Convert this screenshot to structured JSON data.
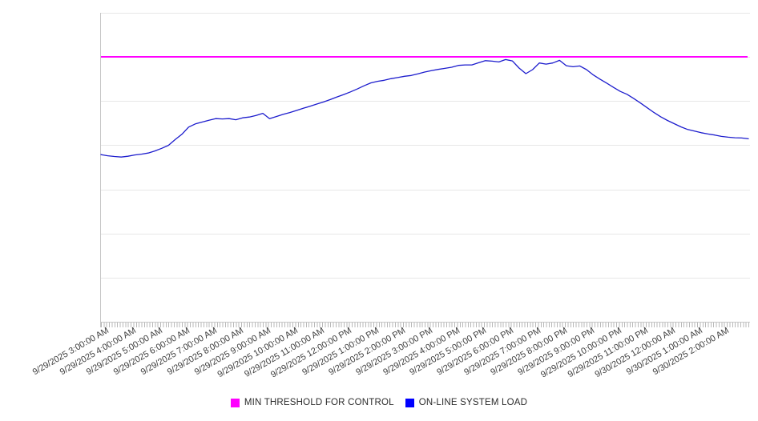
{
  "chart_data": {
    "type": "line",
    "title": "",
    "xlabel": "",
    "ylabel": "",
    "y_axis_labels_visible": false,
    "y_units": "relative load (threshold = 100)",
    "ylim": [
      0,
      116
    ],
    "grid": "horizontal",
    "legend_position": "bottom-center",
    "x_range": [
      "9/29/2025 3:00:00 AM",
      "9/30/2025 3:00:00 AM"
    ],
    "sample_interval_minutes": 15,
    "x_tick_labels": [
      "9/29/2025 3:00:00 AM",
      "9/29/2025 4:00:00 AM",
      "9/29/2025 5:00:00 AM",
      "9/29/2025 6:00:00 AM",
      "9/29/2025 7:00:00 AM",
      "9/29/2025 8:00:00 AM",
      "9/29/2025 9:00:00 AM",
      "9/29/2025 10:00:00 AM",
      "9/29/2025 11:00:00 AM",
      "9/29/2025 12:00:00 PM",
      "9/29/2025 1:00:00 PM",
      "9/29/2025 2:00:00 PM",
      "9/29/2025 3:00:00 PM",
      "9/29/2025 4:00:00 PM",
      "9/29/2025 5:00:00 PM",
      "9/29/2025 6:00:00 PM",
      "9/29/2025 7:00:00 PM",
      "9/29/2025 8:00:00 PM",
      "9/29/2025 9:00:00 PM",
      "9/29/2025 10:00:00 PM",
      "9/29/2025 11:00:00 PM",
      "9/30/2025 12:00:00 AM",
      "9/30/2025 1:00:00 AM",
      "9/30/2025 2:00:00 AM"
    ],
    "series": [
      {
        "name": "MIN THRESHOLD FOR CONTROL",
        "color": "#ff00ff",
        "type": "constant",
        "value": 100
      },
      {
        "name": "ON-LINE SYSTEM LOAD",
        "color": "#0000ff",
        "type": "line",
        "values": [
          63.1,
          62.7,
          62.4,
          62.2,
          62.5,
          63.0,
          63.3,
          63.7,
          64.5,
          65.5,
          66.6,
          68.8,
          70.8,
          73.5,
          74.7,
          75.4,
          76.1,
          76.7,
          76.6,
          76.7,
          76.3,
          77.0,
          77.3,
          77.9,
          78.7,
          76.7,
          77.5,
          78.3,
          79.0,
          79.8,
          80.6,
          81.4,
          82.2,
          83.0,
          83.9,
          84.9,
          85.8,
          86.8,
          87.9,
          89.1,
          90.2,
          90.8,
          91.2,
          91.8,
          92.2,
          92.7,
          93.0,
          93.6,
          94.3,
          94.8,
          95.3,
          95.7,
          96.1,
          96.8,
          97.0,
          97.0,
          97.8,
          98.6,
          98.4,
          98.1,
          99.0,
          98.5,
          95.8,
          93.7,
          95.2,
          97.7,
          97.3,
          97.7,
          98.7,
          96.7,
          96.3,
          96.6,
          95.2,
          93.2,
          91.6,
          90.1,
          88.5,
          87.0,
          85.9,
          84.3,
          82.6,
          80.8,
          79.0,
          77.4,
          76.0,
          74.8,
          73.6,
          72.6,
          72.0,
          71.4,
          70.9,
          70.5,
          70.0,
          69.7,
          69.5,
          69.4,
          69.1
        ]
      }
    ]
  },
  "legend": {
    "threshold_label": "MIN THRESHOLD FOR CONTROL",
    "load_label": "ON-LINE SYSTEM LOAD"
  }
}
